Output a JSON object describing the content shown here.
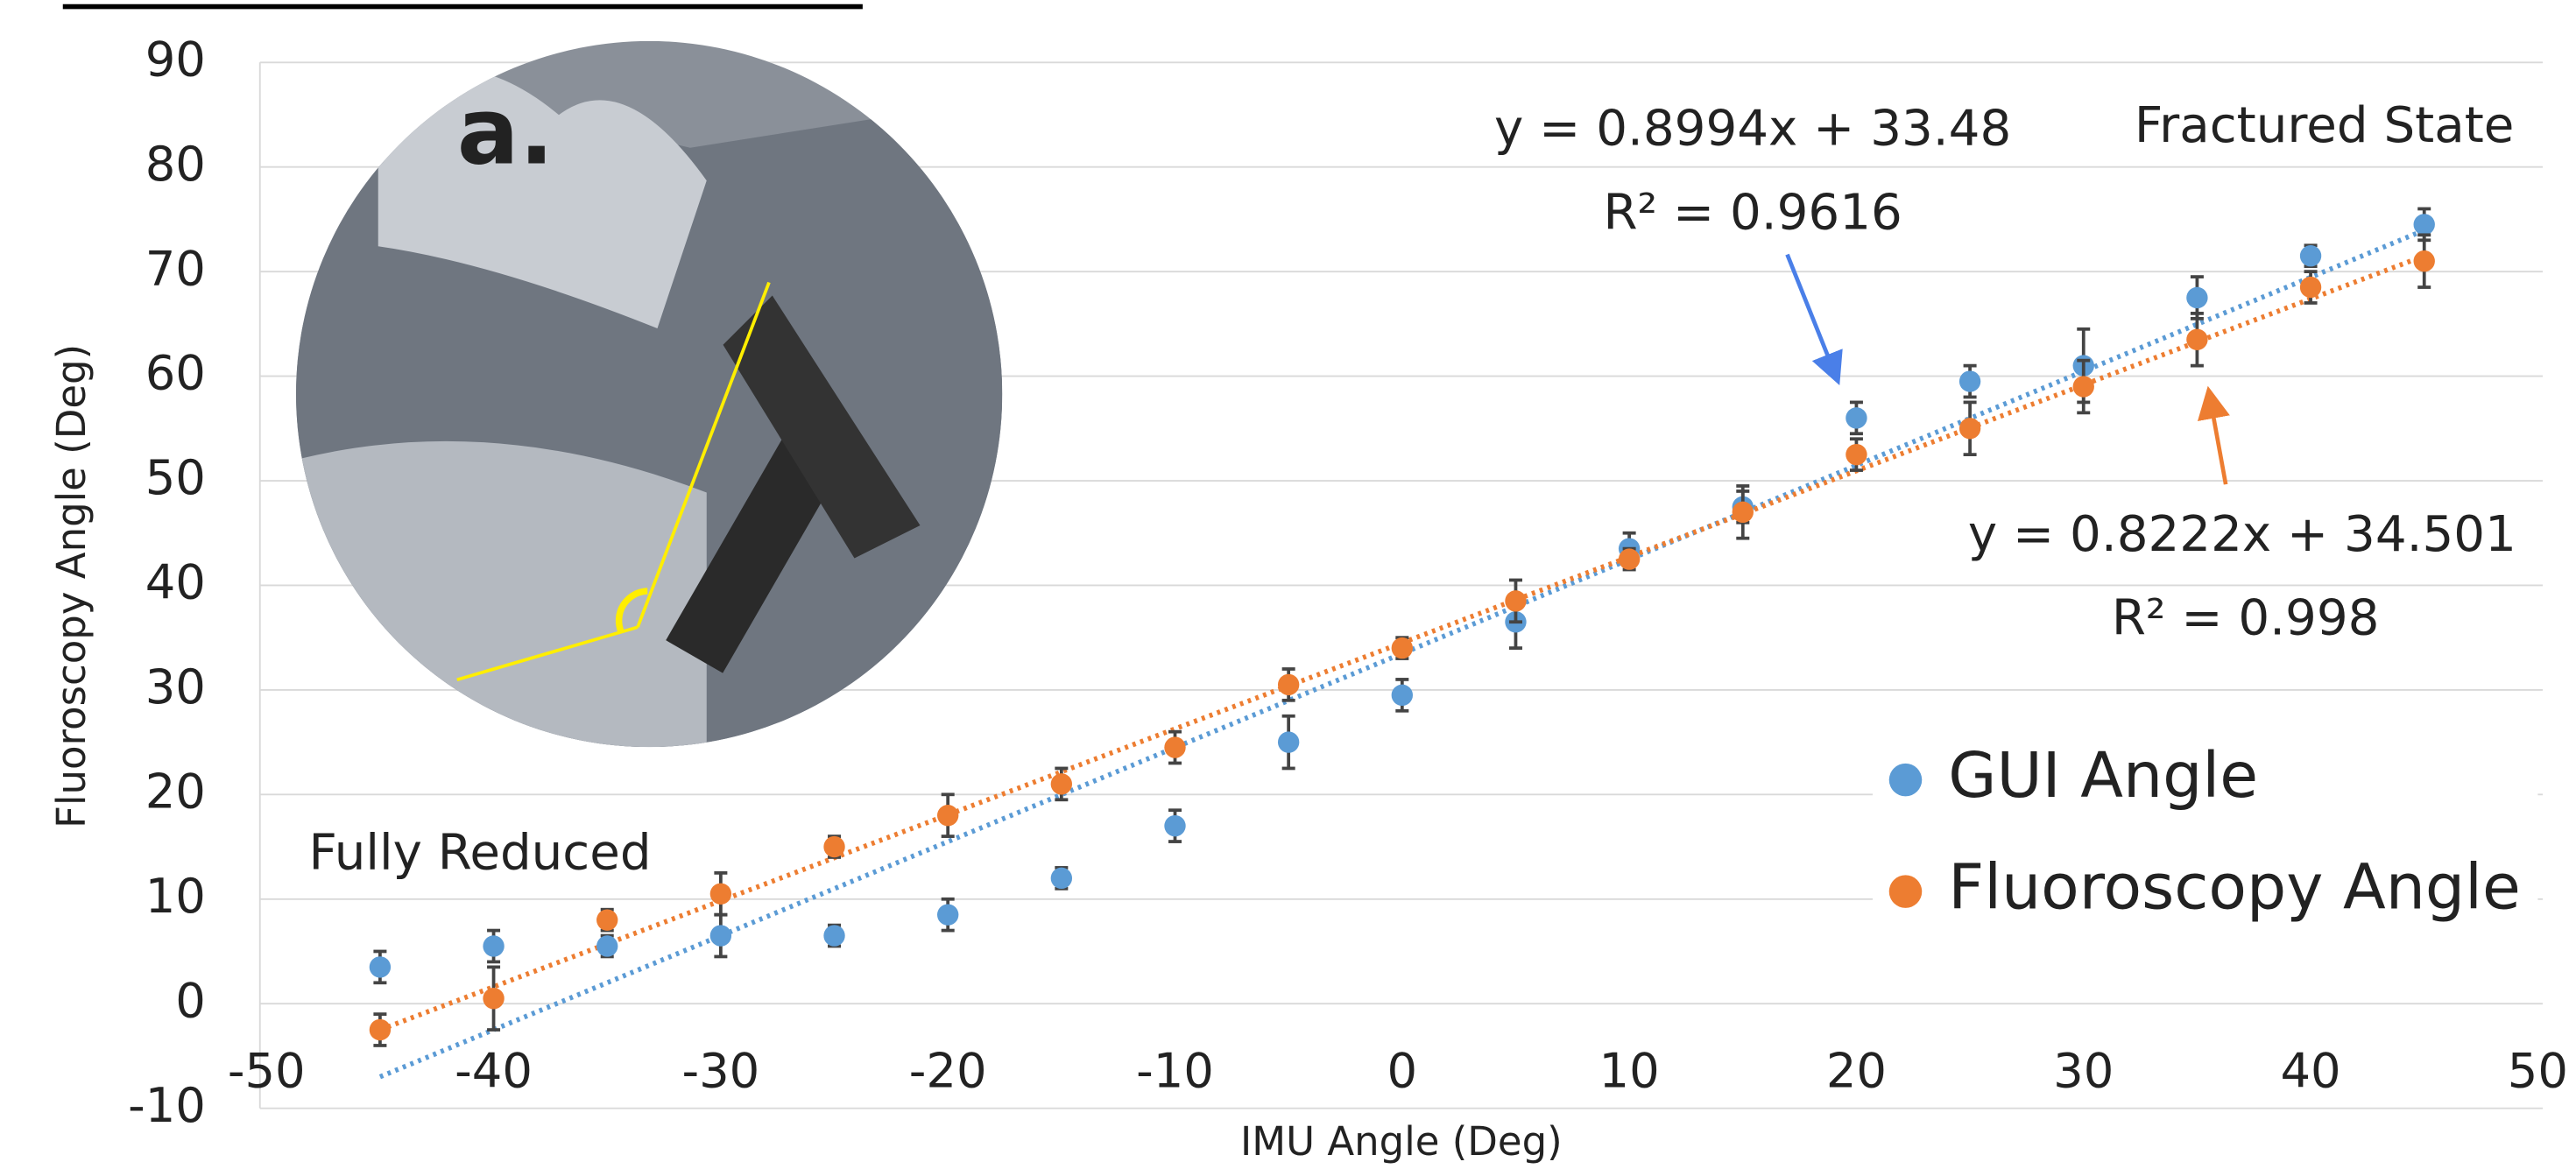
{
  "chart_data": {
    "type": "scatter",
    "x_label": "IMU Angle (Deg)",
    "y_label": "Fluoroscopy Angle (Deg)",
    "panel_label": "a.",
    "annotations": [
      "Fractured State",
      "Fully Reduced"
    ],
    "xlim": [
      -50,
      50
    ],
    "xticks": [
      -50,
      -40,
      -30,
      -20,
      -10,
      0,
      10,
      20,
      30,
      40,
      50
    ],
    "ylim": [
      -10,
      90
    ],
    "yticks": [
      -10,
      0,
      10,
      20,
      30,
      40,
      50,
      60,
      70,
      80,
      90
    ],
    "grid": true,
    "x": [
      -45,
      -40,
      -35,
      -30,
      -25,
      -20,
      -15,
      -10,
      -5,
      0,
      5,
      10,
      15,
      20,
      25,
      30,
      35,
      40,
      45
    ],
    "series": [
      {
        "name": "GUI Angle",
        "color": "#5b9bd5",
        "values": [
          3.5,
          5.5,
          5.5,
          6.5,
          6.5,
          8.5,
          12,
          17,
          25,
          29.5,
          36.5,
          43.5,
          47.5,
          56,
          59.5,
          61,
          67.5,
          71.5,
          74.5
        ],
        "errors": [
          1.5,
          1.5,
          1,
          2,
          1,
          1.5,
          1,
          1.5,
          2.5,
          1.5,
          2.5,
          1.5,
          1.5,
          1.5,
          1.5,
          3.5,
          2,
          1,
          1.5
        ],
        "trendline": {
          "slope": 0.8994,
          "intercept": 33.48,
          "equation": "y = 0.8994x + 33.48",
          "r2": "R² = 0.9616"
        }
      },
      {
        "name": "Fluoroscopy Angle",
        "color": "#ed7d31",
        "values": [
          -2.5,
          0.5,
          8,
          10.5,
          15,
          18,
          21,
          24.5,
          30.5,
          34,
          38.5,
          42.5,
          47,
          52.5,
          55,
          59,
          63.5,
          68.5,
          71
        ],
        "errors": [
          1.5,
          3,
          1,
          2,
          1,
          2,
          1.5,
          1.5,
          1.5,
          1,
          2,
          1,
          2.5,
          1.5,
          2.5,
          2.5,
          2.5,
          1.5,
          2.5
        ],
        "trendline": {
          "slope": 0.8222,
          "intercept": 34.501,
          "equation": "y = 0.8222x + 34.501",
          "r2": "R² = 0.998"
        }
      }
    ]
  }
}
